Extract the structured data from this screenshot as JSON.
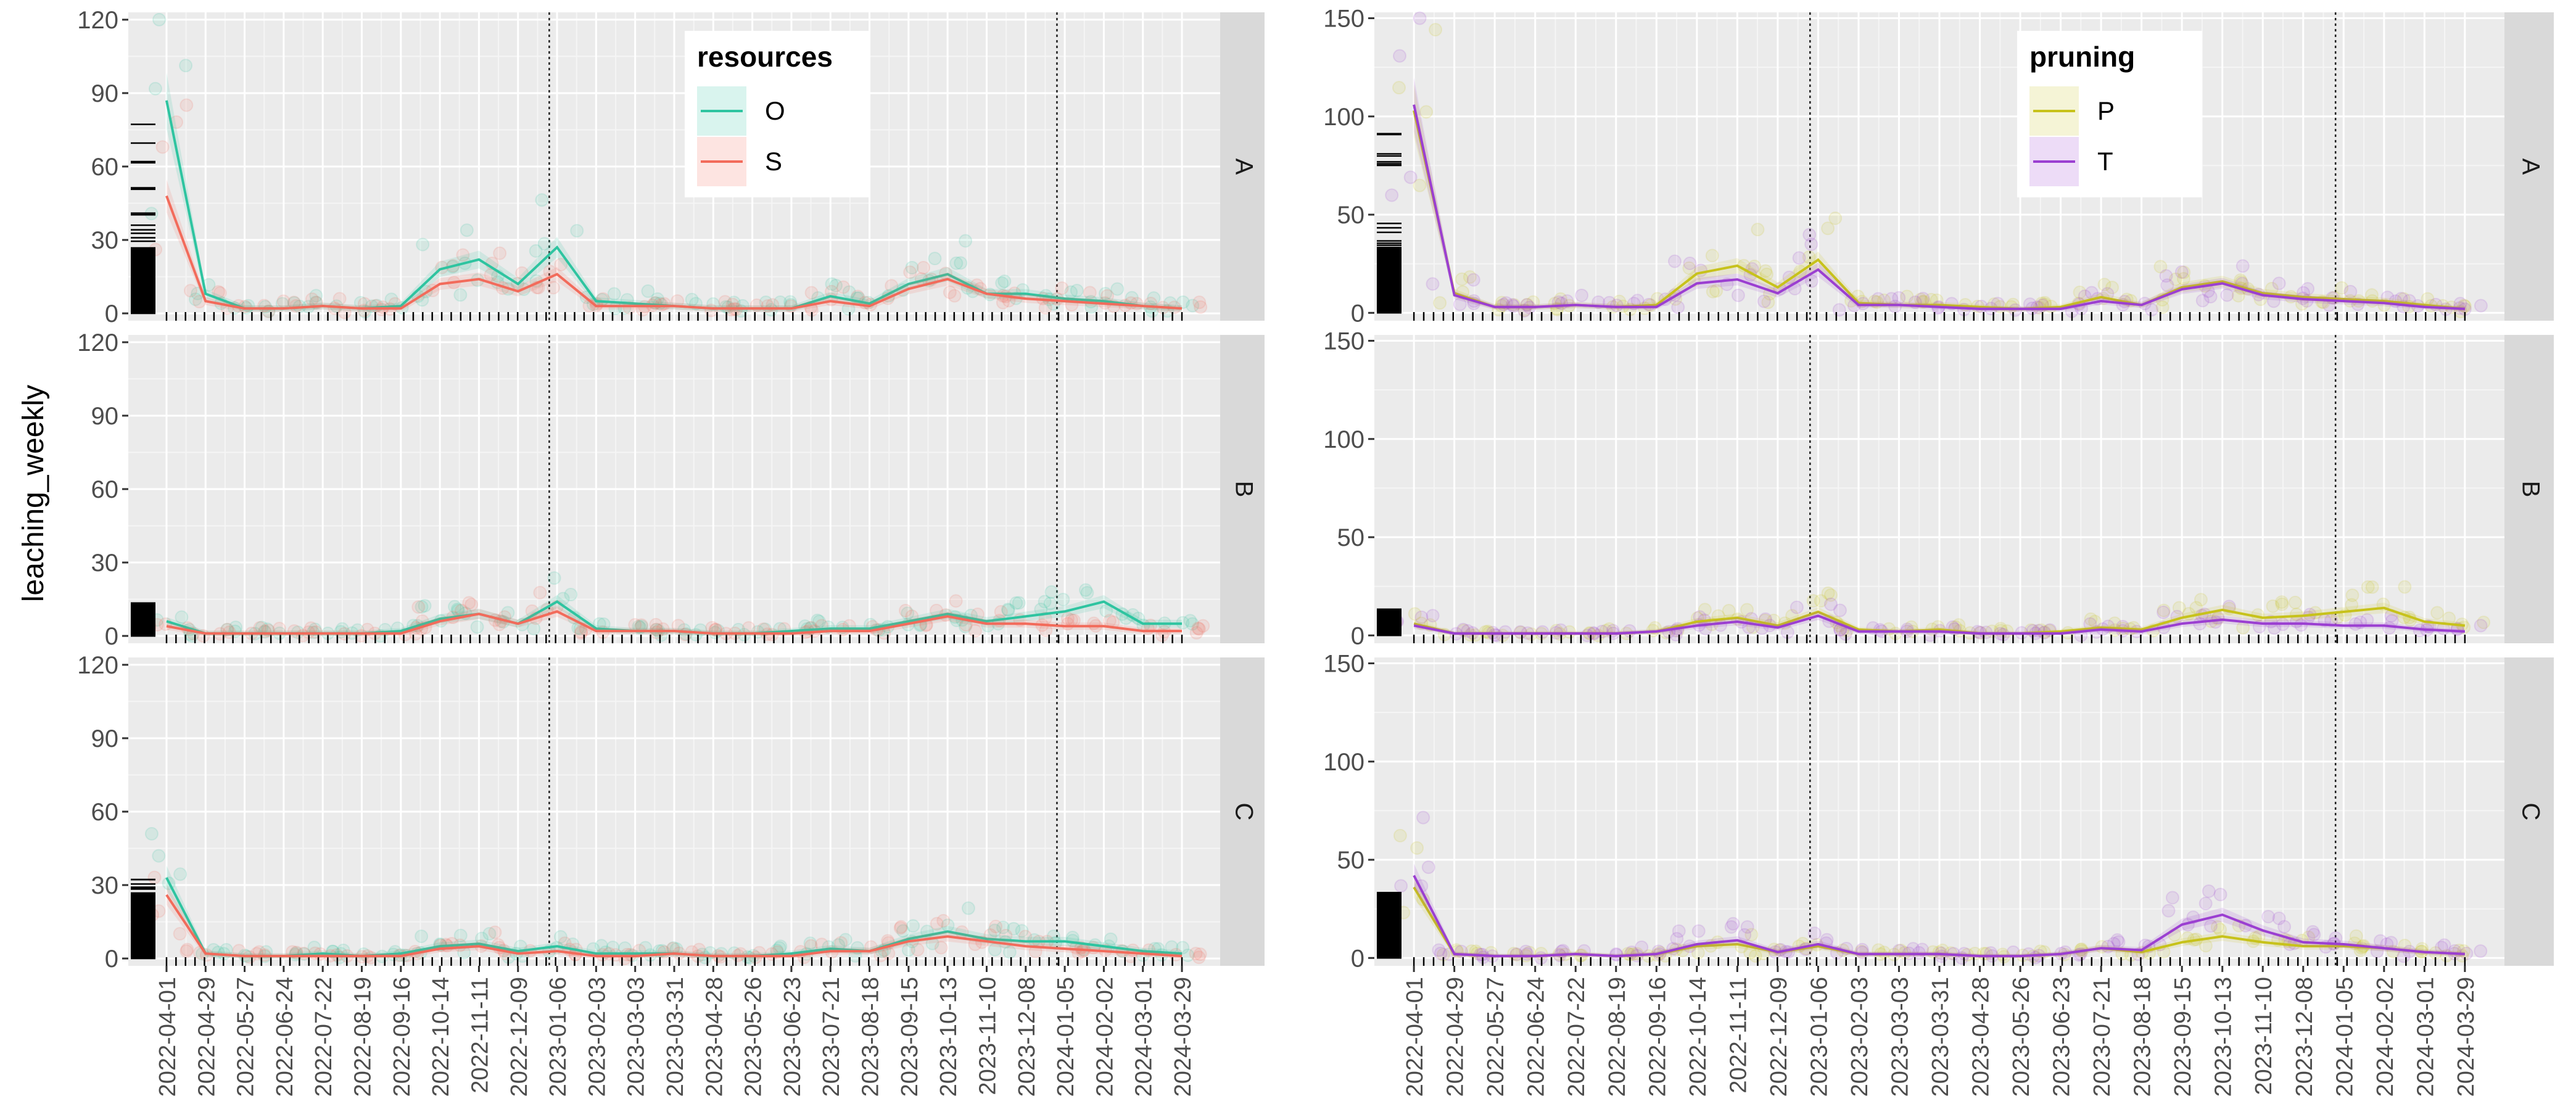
{
  "chart_data": {
    "type": "line",
    "ylabel": "leaching_weekly",
    "facets": [
      "A",
      "B",
      "C"
    ],
    "dates": [
      "2022-04-01",
      "2022-04-29",
      "2022-05-27",
      "2022-06-24",
      "2022-07-22",
      "2022-08-19",
      "2022-09-16",
      "2022-10-14",
      "2022-11-11",
      "2022-12-09",
      "2023-01-06",
      "2023-02-03",
      "2023-03-03",
      "2023-03-31",
      "2023-04-28",
      "2023-05-26",
      "2023-06-23",
      "2023-07-21",
      "2023-08-18",
      "2023-09-15",
      "2023-10-13",
      "2023-11-10",
      "2023-12-08",
      "2024-01-05",
      "2024-02-02",
      "2024-03-01",
      "2024-03-29"
    ],
    "vlines": [
      9.8,
      22.8
    ],
    "panels": [
      {
        "legend_title": "resources",
        "yticks": [
          0,
          30,
          60,
          90,
          120
        ],
        "ylim": [
          -3,
          123
        ],
        "series_colors": [
          "#2ec4a0",
          "#f26b5b"
        ],
        "series": [
          {
            "name": "O",
            "values": {
              "A": [
                87,
                8,
                2,
                2,
                3,
                2,
                3,
                18,
                22,
                12,
                27,
                5,
                4,
                3,
                2,
                2,
                2,
                7,
                4,
                12,
                16,
                8,
                8,
                6,
                5,
                3,
                2
              ],
              "B": [
                6,
                1,
                1,
                1,
                1,
                1,
                2,
                7,
                9,
                5,
                14,
                3,
                2,
                2,
                1,
                1,
                2,
                3,
                3,
                6,
                9,
                6,
                8,
                10,
                14,
                5,
                5
              ],
              "C": [
                33,
                2,
                1,
                1,
                2,
                1,
                2,
                5,
                6,
                3,
                5,
                2,
                2,
                2,
                1,
                1,
                2,
                4,
                3,
                8,
                11,
                8,
                7,
                7,
                5,
                3,
                2
              ]
            }
          },
          {
            "name": "S",
            "values": {
              "A": [
                48,
                5,
                2,
                2,
                3,
                2,
                2,
                12,
                14,
                9,
                16,
                3,
                3,
                3,
                2,
                2,
                2,
                5,
                3,
                10,
                14,
                8,
                6,
                5,
                4,
                3,
                2
              ],
              "B": [
                4,
                1,
                1,
                1,
                1,
                1,
                1,
                6,
                9,
                5,
                10,
                2,
                2,
                2,
                1,
                1,
                1,
                2,
                2,
                5,
                8,
                5,
                5,
                4,
                4,
                2,
                2
              ],
              "C": [
                26,
                2,
                1,
                1,
                1,
                1,
                1,
                4,
                5,
                2,
                3,
                1,
                1,
                2,
                1,
                1,
                1,
                3,
                3,
                7,
                9,
                7,
                5,
                4,
                3,
                2,
                1
              ]
            }
          }
        ]
      },
      {
        "legend_title": "pruning",
        "yticks": [
          0,
          50,
          100,
          150
        ],
        "ylim": [
          -4,
          153
        ],
        "series_colors": [
          "#c7c21b",
          "#9b3fd1"
        ],
        "series": [
          {
            "name": "P",
            "values": {
              "A": [
                103,
                10,
                3,
                3,
                4,
                3,
                4,
                20,
                24,
                13,
                27,
                5,
                4,
                4,
                3,
                2,
                3,
                8,
                4,
                13,
                16,
                10,
                8,
                7,
                6,
                4,
                2
              ],
              "B": [
                6,
                1,
                1,
                1,
                1,
                1,
                2,
                7,
                9,
                5,
                12,
                3,
                2,
                3,
                1,
                1,
                2,
                4,
                3,
                9,
                13,
                9,
                10,
                12,
                14,
                7,
                5
              ],
              "C": [
                36,
                2,
                1,
                1,
                2,
                1,
                2,
                6,
                7,
                3,
                6,
                2,
                2,
                2,
                1,
                1,
                2,
                5,
                3,
                8,
                11,
                8,
                6,
                6,
                5,
                3,
                2
              ]
            }
          },
          {
            "name": "T",
            "values": {
              "A": [
                106,
                9,
                3,
                3,
                4,
                3,
                3,
                15,
                17,
                10,
                22,
                4,
                4,
                3,
                2,
                2,
                2,
                6,
                4,
                12,
                15,
                9,
                7,
                6,
                5,
                3,
                2
              ],
              "B": [
                5,
                1,
                1,
                1,
                1,
                1,
                2,
                5,
                7,
                4,
                10,
                2,
                2,
                2,
                1,
                1,
                1,
                3,
                2,
                6,
                8,
                6,
                6,
                5,
                5,
                3,
                2
              ],
              "C": [
                42,
                2,
                1,
                1,
                2,
                1,
                2,
                7,
                9,
                3,
                7,
                2,
                2,
                2,
                1,
                1,
                2,
                5,
                4,
                17,
                22,
                14,
                8,
                7,
                5,
                3,
                2
              ]
            }
          }
        ]
      }
    ]
  }
}
